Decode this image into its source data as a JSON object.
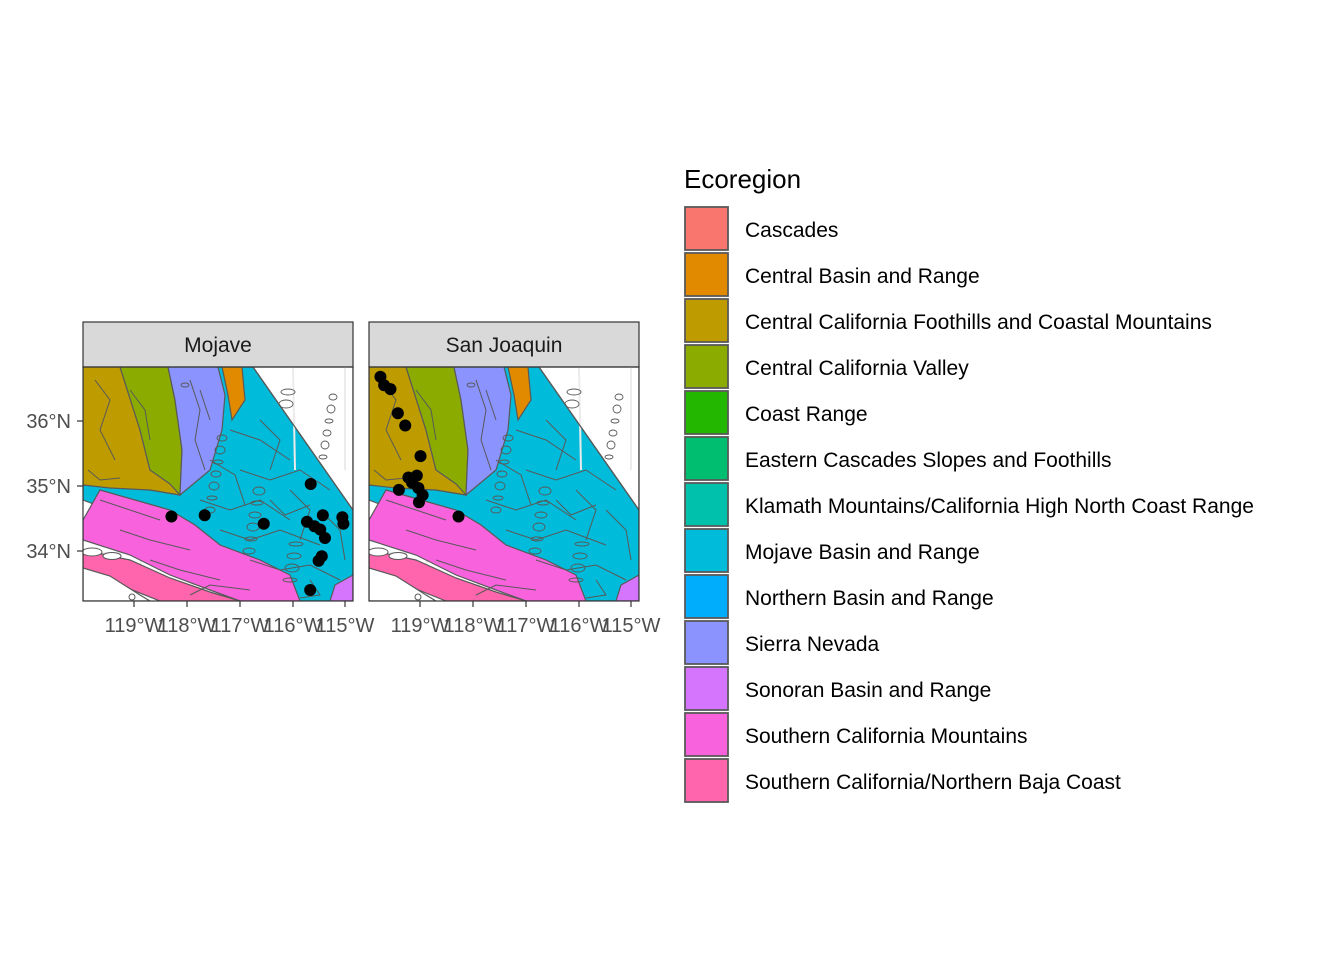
{
  "facets": [
    {
      "name": "Mojave",
      "sites": [
        [
          -118.29,
          34.53
        ],
        [
          -117.66,
          34.55
        ],
        [
          -116.54,
          34.42
        ],
        [
          -115.65,
          35.03
        ],
        [
          -115.72,
          34.45
        ],
        [
          -115.58,
          34.38
        ],
        [
          -115.42,
          34.55
        ],
        [
          -115.47,
          34.33
        ],
        [
          -115.38,
          34.2
        ],
        [
          -115.44,
          33.92
        ],
        [
          -115.5,
          33.85
        ],
        [
          -115.05,
          34.52
        ],
        [
          -115.03,
          34.42
        ],
        [
          -115.66,
          33.4
        ]
      ]
    },
    {
      "name": "San Joaquin",
      "sites": [
        [
          -119.75,
          36.68
        ],
        [
          -119.68,
          36.55
        ],
        [
          -119.56,
          36.49
        ],
        [
          -119.42,
          36.12
        ],
        [
          -119.28,
          35.93
        ],
        [
          -118.99,
          35.46
        ],
        [
          -119.22,
          35.13
        ],
        [
          -119.06,
          35.16
        ],
        [
          -119.15,
          35.05
        ],
        [
          -119.03,
          34.97
        ],
        [
          -118.95,
          34.86
        ],
        [
          -119.02,
          34.75
        ],
        [
          -119.4,
          34.94
        ],
        [
          -118.27,
          34.53
        ]
      ]
    }
  ],
  "axes": {
    "x_ticks": [
      "119°W",
      "118°W",
      "117°W",
      "116°W",
      "115°W"
    ],
    "y_ticks": [
      "36°N",
      "35°N",
      "34°N"
    ]
  },
  "legend": {
    "title": "Ecoregion",
    "items": [
      {
        "label": "Cascades",
        "color": "#F8766D"
      },
      {
        "label": "Central Basin and Range",
        "color": "#E18A00"
      },
      {
        "label": "Central California Foothills and Coastal Mountains",
        "color": "#BE9C00"
      },
      {
        "label": "Central California Valley",
        "color": "#8CAB00"
      },
      {
        "label": "Coast Range",
        "color": "#24B700"
      },
      {
        "label": "Eastern Cascades Slopes and Foothills",
        "color": "#00BE70"
      },
      {
        "label": "Klamath Mountains/California High North Coast Range",
        "color": "#00C1AB"
      },
      {
        "label": "Mojave Basin and Range",
        "color": "#00BBDA"
      },
      {
        "label": "Northern Basin and Range",
        "color": "#00ACFC"
      },
      {
        "label": "Sierra Nevada",
        "color": "#8B93FF"
      },
      {
        "label": "Sonoran Basin and Range",
        "color": "#D575FE"
      },
      {
        "label": "Southern California Mountains",
        "color": "#F962DD"
      },
      {
        "label": "Southern California/Northern Baja Coast",
        "color": "#FF65AC"
      }
    ]
  }
}
